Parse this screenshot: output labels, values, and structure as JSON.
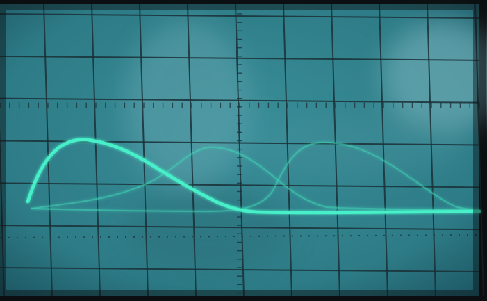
{
  "scene": {
    "subject": "oscilloscope-screen-photo",
    "colors": {
      "screen": "#2f7f8a",
      "screen_dark": "#1c5562",
      "grid": "#1a2f36",
      "trace": "#46f0c8",
      "trace_dim": "#3fd6b6",
      "bezel": "#0b1012"
    },
    "graticule": {
      "major_divisions_x": 10,
      "major_divisions_y": 6,
      "minor_ticks_per_division": 5
    },
    "traces": [
      {
        "name": "",
        "intensity": 1.0
      },
      {
        "name": "",
        "intensity": 0.45
      },
      {
        "name": "",
        "intensity": 0.45
      }
    ]
  }
}
